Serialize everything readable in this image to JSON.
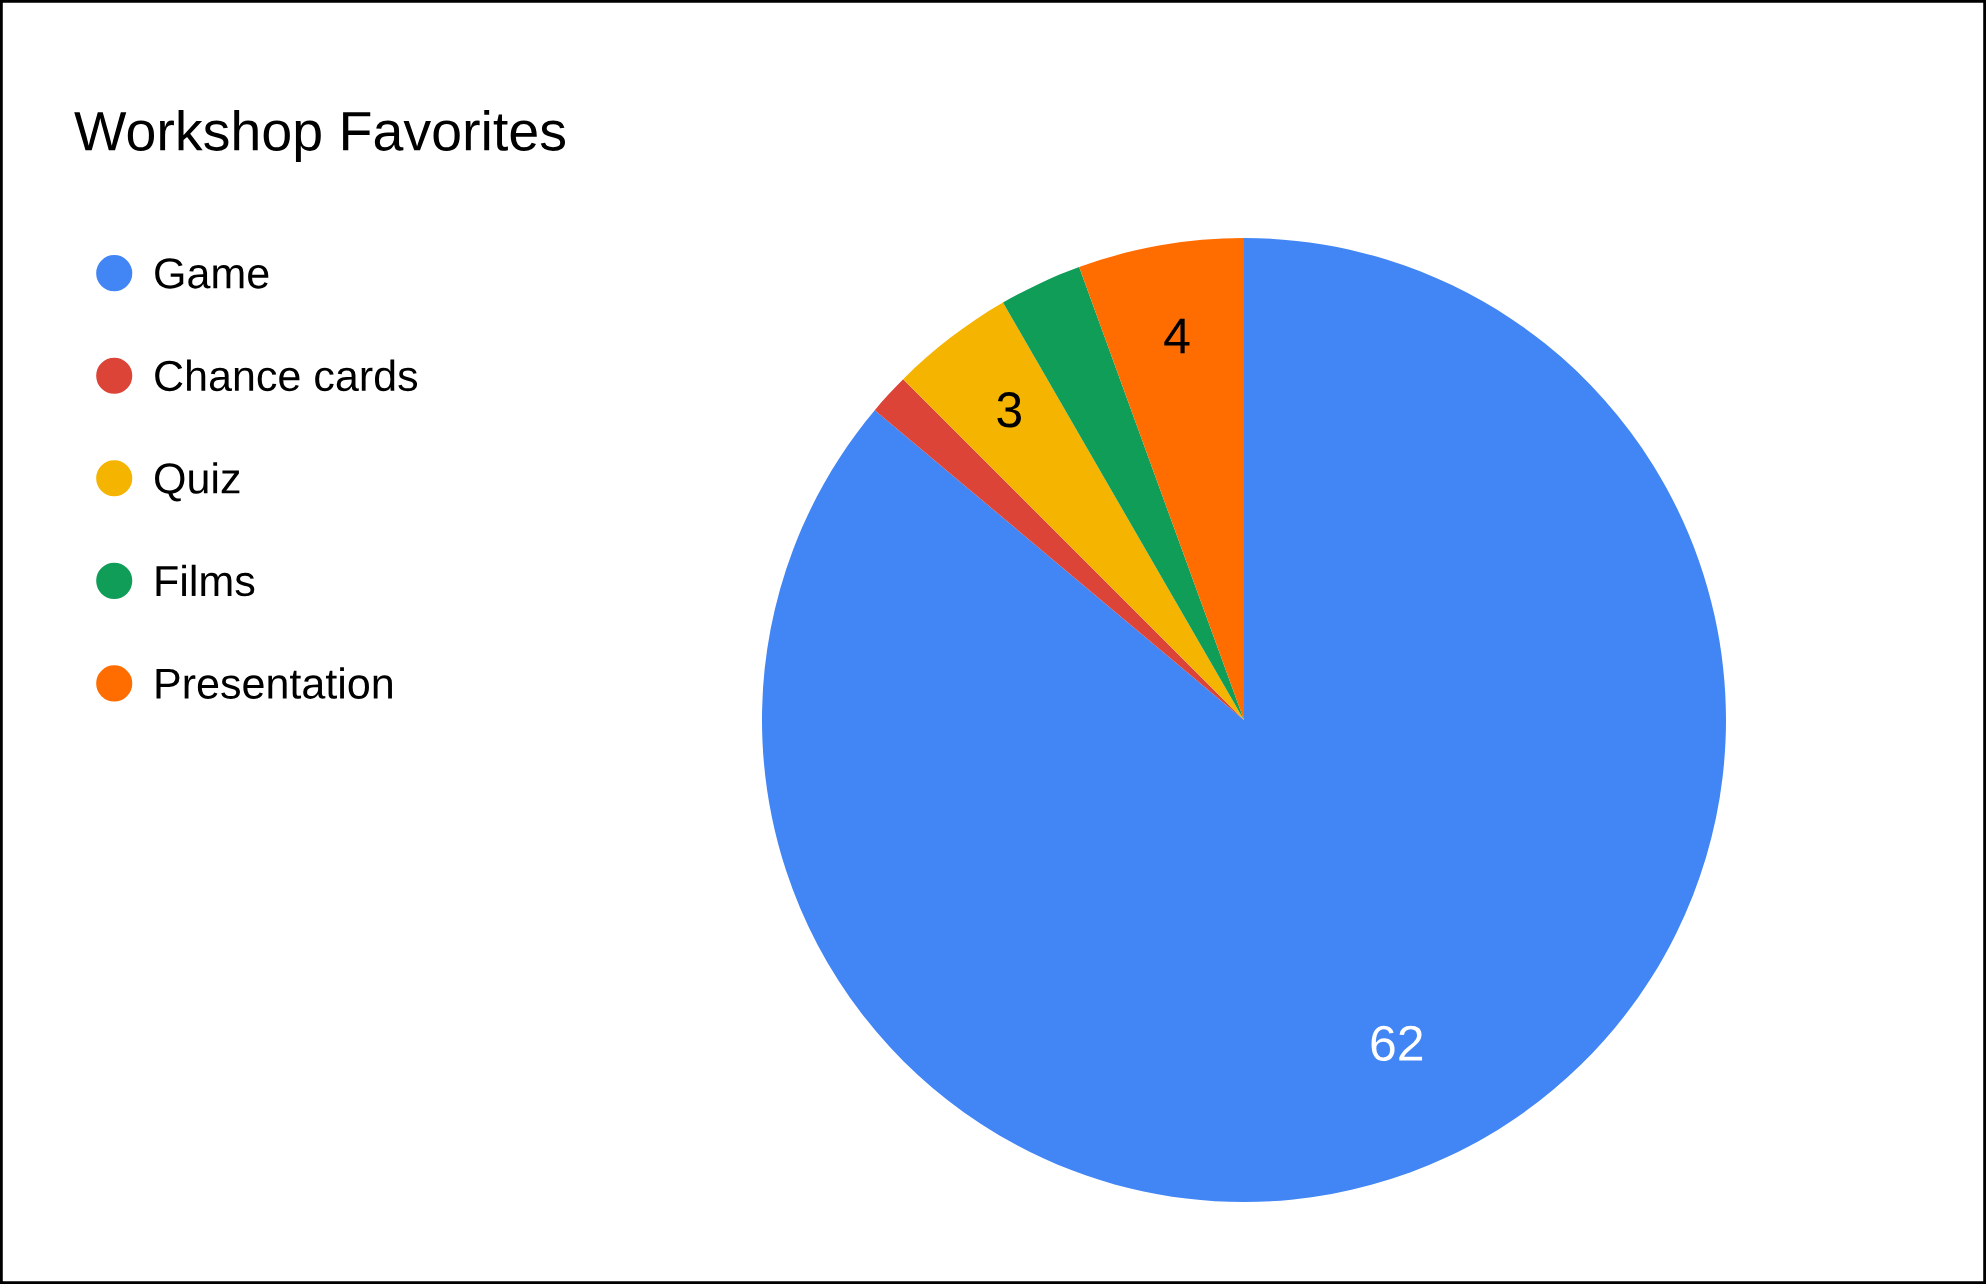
{
  "chart_data": {
    "type": "pie",
    "title": "Workshop Favorites",
    "categories": [
      "Game",
      "Chance cards",
      "Quiz",
      "Films",
      "Presentation"
    ],
    "values": [
      62,
      1,
      3,
      2,
      4
    ],
    "colors": [
      "#4285f4",
      "#db4437",
      "#f4b400",
      "#0f9d58",
      "#ff6d00"
    ],
    "value_labels": [
      "62",
      null,
      "3",
      null,
      "4"
    ],
    "legend": "left"
  }
}
